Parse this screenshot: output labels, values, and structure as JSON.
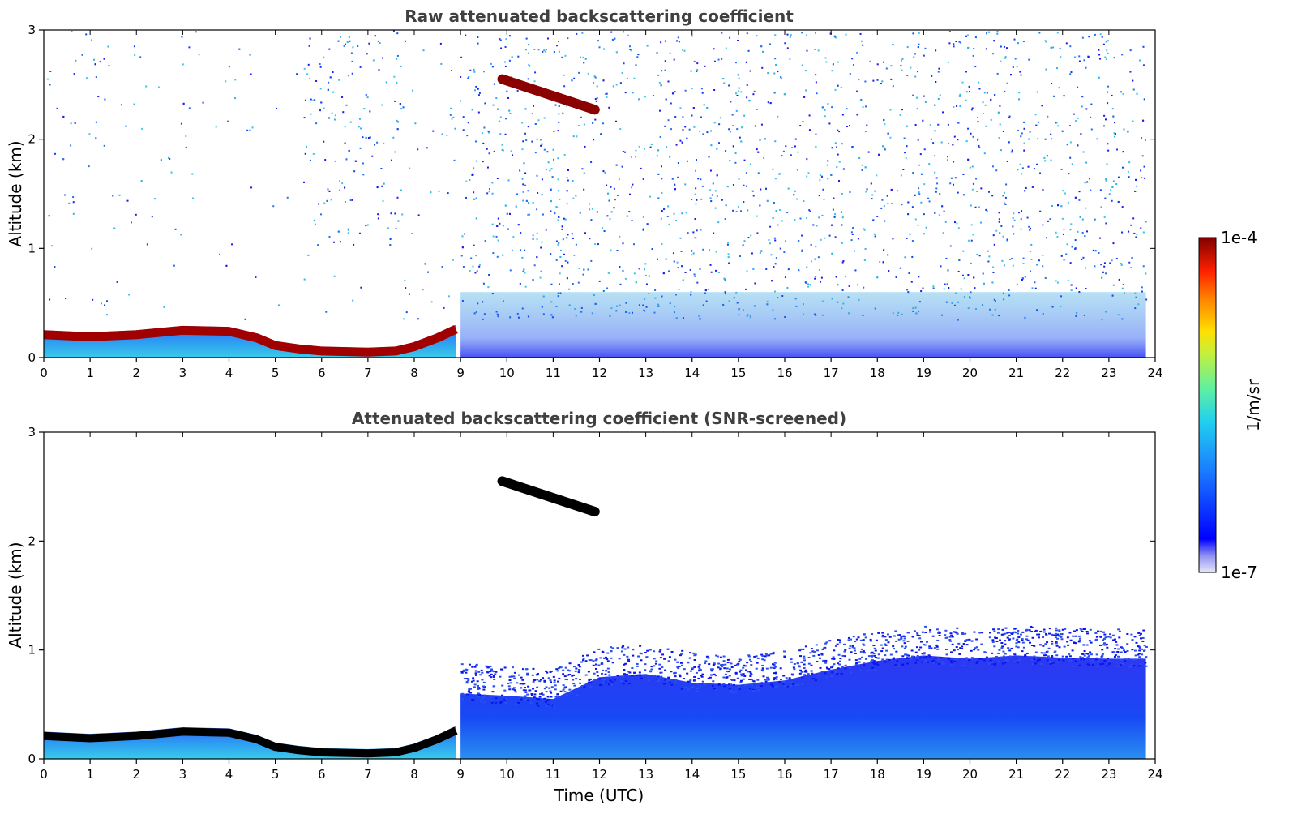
{
  "chart_data": [
    {
      "type": "heatmap",
      "title": "Raw attenuated backscattering coefficient",
      "xlabel": "",
      "ylabel": "Altitude (km)",
      "xlim": [
        0,
        24
      ],
      "ylim": [
        0,
        3
      ],
      "xticks": [
        "0",
        "1",
        "2",
        "3",
        "4",
        "5",
        "6",
        "7",
        "8",
        "9",
        "10",
        "11",
        "12",
        "13",
        "14",
        "15",
        "16",
        "17",
        "18",
        "19",
        "20",
        "21",
        "22",
        "23",
        "24"
      ],
      "yticks": [
        "0",
        "1",
        "2",
        "3"
      ],
      "data_end_time": 23.8,
      "boundary_layer_top_km": [
        {
          "t": 0,
          "z": 0.25
        },
        {
          "t": 1,
          "z": 0.23
        },
        {
          "t": 2,
          "z": 0.25
        },
        {
          "t": 3,
          "z": 0.29
        },
        {
          "t": 4,
          "z": 0.28
        },
        {
          "t": 4.6,
          "z": 0.22
        },
        {
          "t": 5,
          "z": 0.15
        },
        {
          "t": 5.5,
          "z": 0.12
        },
        {
          "t": 6,
          "z": 0.1
        },
        {
          "t": 7,
          "z": 0.09
        },
        {
          "t": 7.6,
          "z": 0.1
        },
        {
          "t": 8,
          "z": 0.14
        },
        {
          "t": 8.5,
          "z": 0.22
        },
        {
          "t": 8.9,
          "z": 0.3
        }
      ],
      "cloud_layer": {
        "t_start": 9.9,
        "t_end": 11.9,
        "z_start_km": 2.55,
        "z_end_km": 2.27
      },
      "colorscale": {
        "min": "1e-7",
        "max": "1e-4",
        "unit": "1/m/sr"
      }
    },
    {
      "type": "heatmap",
      "title": "Attenuated backscattering coefficient (SNR-screened)",
      "xlabel": "Time (UTC)",
      "ylabel": "Altitude (km)",
      "xlim": [
        0,
        24
      ],
      "ylim": [
        0,
        3
      ],
      "xticks": [
        "0",
        "1",
        "2",
        "3",
        "4",
        "5",
        "6",
        "7",
        "8",
        "9",
        "10",
        "11",
        "12",
        "13",
        "14",
        "15",
        "16",
        "17",
        "18",
        "19",
        "20",
        "21",
        "22",
        "23",
        "24"
      ],
      "yticks": [
        "0",
        "1",
        "2",
        "3"
      ],
      "data_end_time": 23.8,
      "mixed_layer_top_km": [
        {
          "t": 9,
          "z": 0.6
        },
        {
          "t": 10,
          "z": 0.58
        },
        {
          "t": 11,
          "z": 0.55
        },
        {
          "t": 12,
          "z": 0.75
        },
        {
          "t": 13,
          "z": 0.78
        },
        {
          "t": 14,
          "z": 0.7
        },
        {
          "t": 15,
          "z": 0.68
        },
        {
          "t": 16,
          "z": 0.72
        },
        {
          "t": 17,
          "z": 0.82
        },
        {
          "t": 18,
          "z": 0.9
        },
        {
          "t": 19,
          "z": 0.95
        },
        {
          "t": 20,
          "z": 0.92
        },
        {
          "t": 21,
          "z": 0.95
        },
        {
          "t": 22,
          "z": 0.93
        },
        {
          "t": 23,
          "z": 0.92
        },
        {
          "t": 23.8,
          "z": 0.92
        }
      ],
      "cloud_layer": {
        "t_start": 9.9,
        "t_end": 11.9,
        "z_start_km": 2.55,
        "z_end_km": 2.27,
        "color": "saturated (black)"
      }
    }
  ],
  "colorbar": {
    "max_label": "1e-4",
    "min_label": "1e-7",
    "unit_label": "1/m/sr"
  },
  "colors": {
    "low": "#0a10f0",
    "mid": "#1aa0f0",
    "cyan": "#2ee0d0",
    "high": "#8b0000",
    "saturated": "#000000"
  }
}
